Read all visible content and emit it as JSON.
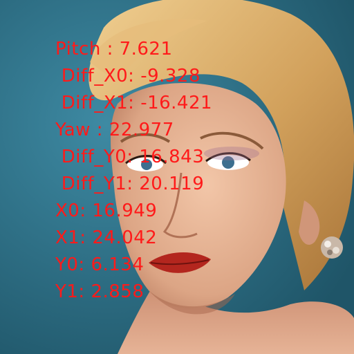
{
  "overlay": {
    "color": "#ff1a1a",
    "lines": [
      "Pitch : 7.621",
      " Diff_X0: -9.328",
      " Diff_X1: -16.421",
      "Yaw : 22.977",
      " Diff_Y0: 16.843",
      " Diff_Y1: 20.119",
      "X0: 16.949",
      "X1: 24.042",
      "Y0: 6.134",
      "Y1: 2.858"
    ]
  },
  "colors": {
    "background": "#2b6f86",
    "hair": "#d9a866",
    "skin": "#e8b79a",
    "lips": "#b3261e",
    "eyes": "#3d6f8f"
  }
}
